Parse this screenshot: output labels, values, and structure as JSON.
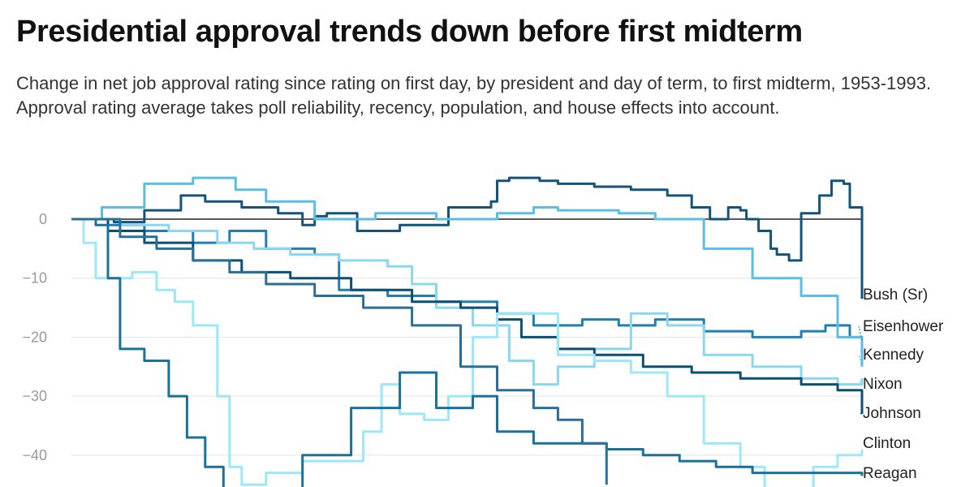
{
  "chart_data": {
    "type": "line",
    "title": "Presidential approval trends down before first midterm",
    "subtitle": "Change in net job approval rating since rating on first day, by president and day of term, to first midterm, 1953-1993. Approval rating average takes poll reliability, recency, population, and house effects into account.",
    "xlabel": "",
    "ylabel": "",
    "x_unit": "day of term",
    "xlim": [
      0,
      650
    ],
    "ylim": [
      -45,
      8
    ],
    "y_ticks": [
      0,
      -10,
      -20,
      -30,
      -40
    ],
    "grid": true,
    "legend": "labels at line ends",
    "series": [
      {
        "name": "Bush (Sr)",
        "color": "#14547a",
        "x": [
          0,
          20,
          35,
          60,
          90,
          110,
          140,
          170,
          190,
          200,
          210,
          235,
          270,
          310,
          345,
          350,
          360,
          385,
          400,
          430,
          460,
          490,
          510,
          525,
          540,
          550,
          555,
          565,
          575,
          580,
          590,
          600,
          615,
          625,
          635,
          640,
          650
        ],
        "y": [
          0,
          0,
          -0.5,
          1.5,
          4,
          3,
          2,
          1,
          -1,
          0.5,
          1,
          -2,
          -1,
          2,
          3,
          6.5,
          7,
          6.5,
          6,
          5.5,
          5,
          4,
          2,
          0,
          2,
          1.5,
          0,
          -2,
          -5,
          -6,
          -7,
          1,
          4,
          6.5,
          6,
          2,
          -13.5
        ]
      },
      {
        "name": "Eisenhower",
        "color": "#1f7fb3",
        "x": [
          0,
          30,
          60,
          100,
          130,
          160,
          200,
          220,
          260,
          300,
          350,
          380,
          420,
          450,
          480,
          520,
          560,
          600,
          620,
          640,
          650
        ],
        "y": [
          0,
          -1,
          -2,
          -4,
          -2,
          -5,
          -6,
          -12,
          -13,
          -14,
          -16,
          -18,
          -17,
          -18,
          -17,
          -19,
          -20,
          -19,
          -18,
          -20,
          -20.5
        ]
      },
      {
        "name": "Kennedy",
        "color": "#5bbce4",
        "x": [
          0,
          25,
          60,
          100,
          135,
          160,
          200,
          250,
          300,
          350,
          380,
          400,
          450,
          480,
          520,
          560,
          600,
          630,
          650
        ],
        "y": [
          0,
          2,
          6,
          7,
          5,
          3,
          0,
          1,
          0,
          1,
          2,
          1.5,
          1,
          0,
          -5,
          -10,
          -13,
          -20,
          -25
        ]
      },
      {
        "name": "Nixon",
        "color": "#8ad7ef",
        "x": [
          0,
          40,
          80,
          120,
          150,
          180,
          220,
          260,
          280,
          300,
          330,
          360,
          380,
          400,
          430,
          460,
          490,
          520,
          560,
          600,
          630,
          650
        ],
        "y": [
          0,
          -1,
          -2,
          -4,
          -5,
          -6,
          -7,
          -8,
          -11,
          -15,
          -18,
          -24,
          -28,
          -25,
          -22,
          -16,
          -18,
          -23,
          -25,
          -27,
          -28,
          -27
        ]
      },
      {
        "name": "Johnson",
        "color": "#0b4f73",
        "x": [
          0,
          30,
          60,
          100,
          140,
          180,
          230,
          280,
          320,
          350,
          370,
          400,
          430,
          470,
          510,
          550,
          600,
          630,
          650
        ],
        "y": [
          0,
          -2,
          -4,
          -7,
          -9,
          -10,
          -12,
          -14,
          -15,
          -17,
          -20,
          -22,
          -23,
          -25,
          -26,
          -27,
          -28,
          -29,
          -33
        ]
      },
      {
        "name": "Clinton",
        "color": "#9ce8f9",
        "x": [
          0,
          10,
          20,
          30,
          50,
          70,
          85,
          100,
          120,
          130,
          140,
          160,
          190,
          220,
          240,
          255,
          270,
          290,
          310,
          330,
          350,
          380,
          400,
          430,
          460,
          490,
          520,
          550,
          570,
          590,
          610,
          630,
          650
        ],
        "y": [
          0,
          -4,
          -10,
          -10,
          -9,
          -12,
          -14,
          -18,
          -30,
          -42,
          -45,
          -43,
          -41,
          -41,
          -36,
          -28,
          -33,
          -34,
          -30,
          -20,
          -16,
          -16,
          -23,
          -24,
          -26,
          -30,
          -38,
          -42,
          -46,
          -46,
          -42,
          -40,
          -39
        ]
      },
      {
        "name": "Reagan",
        "color": "#1a7199",
        "x": [
          0,
          20,
          30,
          40,
          50,
          60,
          80,
          95,
          110,
          125,
          140,
          160,
          190,
          230,
          270,
          300,
          330,
          350,
          380,
          410,
          440,
          470,
          500,
          530,
          560,
          590,
          620,
          650
        ],
        "y": [
          0,
          -1,
          -10,
          -22,
          -22,
          -24,
          -30,
          -37,
          -42,
          -46,
          -48,
          -48,
          -40,
          -32,
          -26,
          -32,
          -30,
          -36,
          -38,
          -38,
          -39,
          -40,
          -41,
          -42,
          -43,
          -43,
          -43,
          -43.5
        ]
      },
      {
        "name": "",
        "color": "#2a6f95",
        "x": [
          0,
          20,
          40,
          70,
          100,
          130,
          160,
          200,
          240,
          280,
          320,
          350,
          380,
          400,
          420,
          440
        ],
        "y": [
          0,
          0,
          -3,
          -5,
          -7,
          -9,
          -11,
          -13,
          -15,
          -18,
          -25,
          -29,
          -32,
          -34,
          -38,
          -45
        ]
      }
    ]
  }
}
